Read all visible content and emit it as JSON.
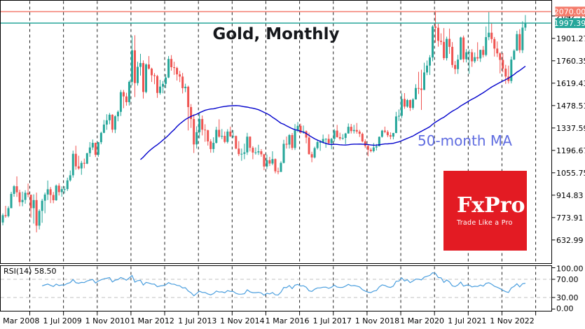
{
  "title": "Gold, Monthly",
  "ma": {
    "label": "50-month MA",
    "period": 50,
    "color": "#0202cc",
    "label_color": "#5f6ce0"
  },
  "rsi": {
    "label": "RSI(14) 58.50",
    "period": 14,
    "value": 58.5,
    "axis_labels": [
      "100.00",
      "70.00",
      "30.00",
      "0.00"
    ],
    "axis_values": [
      100,
      70,
      30,
      0
    ],
    "guides": [
      70,
      30
    ],
    "line_color": "#4a9ede",
    "guide_color": "#c0c0c0"
  },
  "watermark": {
    "brand": "FxPro",
    "tagline": "Trade Like a Pro",
    "bg_color": "#e31b23"
  },
  "price_axis": {
    "tick_labels": [
      "2042.19",
      "1901.27",
      "1760.35",
      "1619.43",
      "1478.51",
      "1337.59",
      "1196.67",
      "1055.75",
      "914.83",
      "773.91",
      "632.99"
    ],
    "badges": [
      {
        "label": "2070.00",
        "price": 2070.0,
        "color": "#f47c6c"
      },
      {
        "label": "1997.39",
        "price": 1997.39,
        "color": "#26a69a"
      }
    ]
  },
  "hlines": [
    {
      "price": 2070.0,
      "color": "#f48174",
      "role": "resistance"
    },
    {
      "price": 1997.39,
      "color": "#26a69a",
      "role": "current-price"
    }
  ],
  "date_axis": {
    "labels": [
      "1 Mar 2008",
      "1 Jul 2009",
      "1 Nov 2010",
      "1 Mar 2012",
      "1 Jul 2013",
      "1 Nov 2014",
      "1 Mar 2016",
      "1 Jul 2017",
      "1 Nov 2018",
      "1 Mar 2020",
      "1 Jul 2021",
      "1 Nov 2022"
    ]
  },
  "colors": {
    "up": "#26a69a",
    "down": "#ef5350",
    "grid": "#1f1f1f",
    "border": "#000000",
    "axis_text": "#000000",
    "badge_text": "#ffffff"
  },
  "chart_data": {
    "type": "candlestick",
    "symbol": "Gold",
    "timeframe": "Monthly",
    "start": "Oct 2007",
    "end": "Apr 2023",
    "last_close": 1997.39,
    "resistance_level": 2070.0,
    "first_open": 743,
    "ylim": [
      524,
      2143
    ],
    "x_tick_interval_months": 16,
    "overlays": [
      {
        "name": "50-month MA",
        "type": "sma",
        "period": 50,
        "panel": "main"
      },
      {
        "name": "RSI",
        "type": "rsi",
        "period": 14,
        "panel": "lower",
        "last_value": 58.5,
        "guides": [
          70,
          30
        ],
        "range": [
          0,
          100
        ]
      }
    ],
    "closes": [
      789,
      783,
      833,
      923,
      971,
      933,
      871,
      885,
      930,
      918,
      833,
      884,
      723,
      816,
      880,
      919,
      952,
      916,
      883,
      975,
      934,
      953,
      953,
      1008,
      1040,
      1175,
      1096,
      1083,
      1118,
      1113,
      1179,
      1215,
      1244,
      1169,
      1248,
      1307,
      1359,
      1386,
      1421,
      1327,
      1411,
      1439,
      1563,
      1536,
      1500,
      1628,
      1826,
      1620,
      1722,
      1746,
      1564,
      1737,
      1711,
      1669,
      1664,
      1558,
      1598,
      1615,
      1655,
      1772,
      1720,
      1715,
      1675,
      1661,
      1588,
      1597,
      1469,
      1394,
      1234,
      1311,
      1394,
      1327,
      1323,
      1253,
      1205,
      1244,
      1326,
      1283,
      1288,
      1250,
      1315,
      1285,
      1287,
      1208,
      1173,
      1175,
      1184,
      1283,
      1213,
      1183,
      1184,
      1191,
      1172,
      1095,
      1135,
      1114,
      1142,
      1065,
      1061,
      1118,
      1238,
      1233,
      1293,
      1212,
      1322,
      1351,
      1309,
      1317,
      1277,
      1173,
      1152,
      1211,
      1249,
      1249,
      1268,
      1269,
      1242,
      1269,
      1321,
      1280,
      1271,
      1275,
      1303,
      1345,
      1318,
      1325,
      1315,
      1301,
      1253,
      1224,
      1201,
      1192,
      1215,
      1222,
      1282,
      1321,
      1313,
      1292,
      1283,
      1306,
      1410,
      1414,
      1520,
      1472,
      1513,
      1464,
      1517,
      1589,
      1586,
      1577,
      1687,
      1730,
      1781,
      1976,
      1968,
      1886,
      1879,
      1777,
      1898,
      1848,
      1734,
      1708,
      1768,
      1907,
      1770,
      1814,
      1814,
      1757,
      1783,
      1775,
      1829,
      1797,
      1909,
      1937,
      1897,
      1837,
      1807,
      1766,
      1711,
      1661,
      1633,
      1768,
      1824,
      1928,
      1827,
      1969,
      1997.39
    ],
    "highs": [
      800,
      848,
      845,
      936,
      978,
      1033,
      949,
      937,
      946,
      988,
      918,
      920,
      931,
      826,
      892,
      931,
      1007,
      966,
      935,
      982,
      990,
      970,
      971,
      1025,
      1070,
      1195,
      1226,
      1163,
      1131,
      1145,
      1181,
      1249,
      1265,
      1246,
      1249,
      1314,
      1388,
      1424,
      1432,
      1424,
      1418,
      1448,
      1577,
      1577,
      1559,
      1637,
      1917,
      1921,
      1754,
      1804,
      1763,
      1744,
      1790,
      1717,
      1683,
      1672,
      1640,
      1633,
      1676,
      1790,
      1796,
      1754,
      1723,
      1697,
      1684,
      1616,
      1604,
      1488,
      1424,
      1348,
      1434,
      1416,
      1361,
      1327,
      1267,
      1279,
      1345,
      1392,
      1331,
      1315,
      1330,
      1346,
      1324,
      1290,
      1255,
      1208,
      1239,
      1307,
      1285,
      1223,
      1215,
      1232,
      1205,
      1175,
      1170,
      1156,
      1191,
      1146,
      1088,
      1128,
      1263,
      1284,
      1299,
      1306,
      1362,
      1375,
      1365,
      1353,
      1322,
      1308,
      1188,
      1220,
      1264,
      1261,
      1296,
      1273,
      1298,
      1275,
      1331,
      1357,
      1308,
      1299,
      1307,
      1366,
      1363,
      1357,
      1369,
      1326,
      1309,
      1266,
      1235,
      1212,
      1243,
      1237,
      1284,
      1326,
      1346,
      1324,
      1310,
      1307,
      1439,
      1454,
      1555,
      1557,
      1520,
      1517,
      1525,
      1613,
      1691,
      1704,
      1748,
      1762,
      1796,
      1984,
      2075,
      1993,
      1933,
      1966,
      1912,
      1963,
      1878,
      1759,
      1798,
      1912,
      1919,
      1834,
      1831,
      1834,
      1813,
      1877,
      1830,
      1853,
      1976,
      2070,
      1998,
      1910,
      1882,
      1814,
      1808,
      1735,
      1730,
      1787,
      1833,
      1949,
      1959,
      2009,
      2048
    ],
    "lows": [
      725,
      773,
      775,
      833,
      905,
      904,
      845,
      845,
      861,
      902,
      772,
      736,
      681,
      699,
      741,
      801,
      884,
      865,
      864,
      879,
      913,
      905,
      925,
      941,
      1000,
      1025,
      1075,
      1075,
      1043,
      1084,
      1110,
      1156,
      1199,
      1155,
      1156,
      1235,
      1305,
      1326,
      1361,
      1308,
      1305,
      1380,
      1413,
      1462,
      1478,
      1479,
      1605,
      1532,
      1604,
      1667,
      1523,
      1556,
      1705,
      1627,
      1613,
      1527,
      1547,
      1556,
      1588,
      1651,
      1698,
      1672,
      1636,
      1626,
      1555,
      1563,
      1322,
      1338,
      1180,
      1208,
      1272,
      1291,
      1251,
      1227,
      1182,
      1182,
      1240,
      1277,
      1268,
      1241,
      1240,
      1281,
      1273,
      1204,
      1161,
      1131,
      1141,
      1168,
      1190,
      1141,
      1170,
      1168,
      1157,
      1072,
      1080,
      1098,
      1104,
      1052,
      1046,
      1061,
      1115,
      1208,
      1208,
      1199,
      1199,
      1310,
      1302,
      1302,
      1241,
      1170,
      1122,
      1146,
      1202,
      1194,
      1240,
      1213,
      1236,
      1204,
      1251,
      1277,
      1260,
      1263,
      1236,
      1302,
      1303,
      1303,
      1302,
      1281,
      1247,
      1211,
      1160,
      1184,
      1184,
      1196,
      1222,
      1277,
      1305,
      1280,
      1266,
      1266,
      1305,
      1382,
      1400,
      1458,
      1465,
      1445,
      1453,
      1517,
      1551,
      1451,
      1576,
      1670,
      1671,
      1757,
      1874,
      1849,
      1860,
      1765,
      1762,
      1804,
      1717,
      1677,
      1678,
      1766,
      1750,
      1750,
      1678,
      1722,
      1746,
      1759,
      1753,
      1781,
      1788,
      1890,
      1872,
      1787,
      1784,
      1681,
      1688,
      1615,
      1617,
      1618,
      1765,
      1823,
      1810,
      1809,
      1949
    ]
  }
}
